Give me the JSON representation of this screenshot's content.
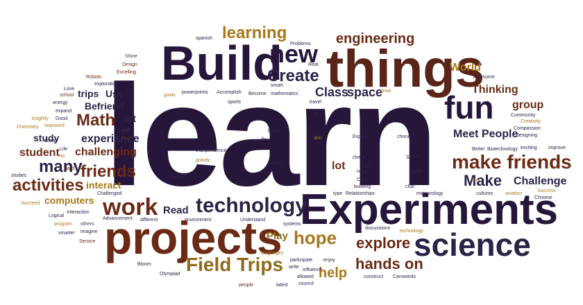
{
  "words": {
    "learn": "learn",
    "build": "Build",
    "things": "things",
    "experiments": "Experiments",
    "projects": "projects",
    "science": "science",
    "technology": "technology",
    "work": "work",
    "fun": "fun",
    "make_friends": "make friends",
    "friends": "friends",
    "field_trips": "Field Trips",
    "hope": "hope",
    "explore": "explore",
    "hands_on": "hands on",
    "activities": "activities",
    "many": "many",
    "math": "Math",
    "new": "new",
    "learning": "learning",
    "engineering": "engineering",
    "create": "Create",
    "class": "Class",
    "space": "space",
    "make": "Make",
    "challenge": "Challenge",
    "meet_people": "Meet People",
    "thinking": "Thinking",
    "group": "group",
    "world": "World",
    "experience": "experience",
    "challenging": "challenging",
    "student": "student",
    "study": "study",
    "trips": "trips",
    "use": "Use",
    "befriend": "Befriend",
    "art": "art",
    "lot": "lot",
    "computers": "computers",
    "interact": "interact",
    "play": "Play",
    "read": "Read",
    "help": "help",
    "shine": "Shine",
    "design": "Design",
    "excelling": "Excelling",
    "robots": "Robots",
    "exploration": "exploration",
    "love": "Love",
    "school": "school",
    "energy": "energy",
    "expand": "expand",
    "knightly": "knightly",
    "good": "Good",
    "improved": "improved",
    "chemistry": "Chemistry",
    "great": "Great",
    "life": "Life",
    "tio": "tio",
    "sing": "Sing",
    "stuff": "stuff",
    "studies": "studies",
    "hard": "Hard",
    "succeed": "Succeed",
    "challenged": "Challenged",
    "logical": "Logical",
    "interaction": "Interaction",
    "program": "program",
    "others": "others",
    "imagine": "imagine",
    "smarter": "smarter",
    "service": "Service",
    "advancement": "Advancement",
    "different": "different",
    "bloom": "Bloom",
    "olympiad": "Olympiad",
    "spanish": "spanish",
    "problems": "Problems",
    "real": "Real",
    "smart": "smart",
    "goals": "goals",
    "powerpoints": "powerpoints",
    "accomplish": "Accomplish",
    "become": "Become",
    "mathematics": "mathematics",
    "grow": "grow",
    "travel": "travel",
    "go": "go",
    "sports": "sports",
    "awesome": "Awesome",
    "creativity": "Creativity",
    "compassion": "Compassion",
    "community": "Community",
    "designing": "designing",
    "better": "Better",
    "biotechnology": "Biotechnology",
    "exciting": "exciting",
    "improve": "improve",
    "express": "Express",
    "chorus": "chorus",
    "books": "books",
    "fix": "fix",
    "alot": "alot",
    "independence": "Independence",
    "gravity": "gravity",
    "chess": "chess",
    "news": "news",
    "stem": "STEM",
    "excel": "excel",
    "clubs": "clubs",
    "cool": "Cool",
    "building": "building",
    "smile": "smile",
    "conquer": "Conquer",
    "usual": "usual",
    "environment": "environment",
    "understand": "Understand",
    "type": "type",
    "relationships": "Relationships",
    "club": "club",
    "meteorology": "meteorology",
    "eat": "eat",
    "cultures": "cultures",
    "aviation": "aviation",
    "success": "Success",
    "chinese": "Chinese",
    "systems": "systems",
    "dissussions": "dissussions",
    "technology_small": "technology",
    "languages": "languages",
    "participate": "participate",
    "enjoy": "enjoy",
    "write": "write",
    "influence": "influence",
    "allowed": "allowed",
    "council": "council",
    "people": "people",
    "latest": "latest",
    "construct": "construct",
    "carowinds": "Carowinds"
  }
}
